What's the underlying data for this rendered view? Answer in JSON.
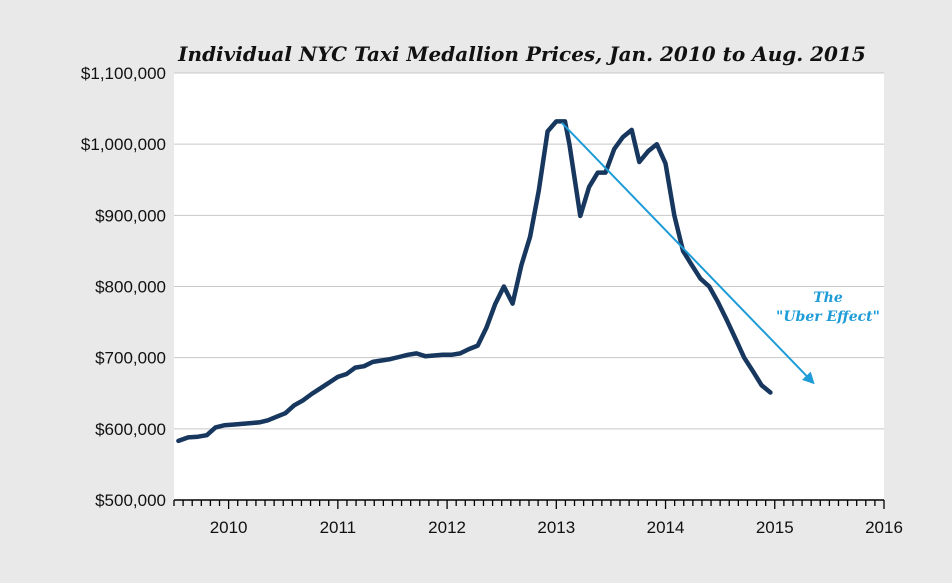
{
  "chart_data": {
    "type": "line",
    "title": "Individual NYC Taxi Medallion Prices, Jan. 2010 to Aug. 2015",
    "xlabel": "",
    "ylabel": "",
    "xlim": [
      2009.5,
      2016.0
    ],
    "ylim": [
      500000,
      1100000
    ],
    "yticks": [
      500000,
      600000,
      700000,
      800000,
      900000,
      1000000,
      1100000
    ],
    "ytick_labels": [
      "$500,000",
      "$600,000",
      "$700,000",
      "$800,000",
      "$900,000",
      "$1,000,000",
      "$1,100,000"
    ],
    "xticks": [
      2010,
      2011,
      2012,
      2013,
      2014,
      2015,
      2016
    ],
    "xtick_labels": [
      "2010",
      "2011",
      "2012",
      "2013",
      "2014",
      "2015",
      "2016"
    ],
    "grid": "horizontal",
    "series": [
      {
        "color": "#17375e",
        "points": [
          [
            2009.54,
            583000
          ],
          [
            2009.63,
            588000
          ],
          [
            2009.72,
            589000
          ],
          [
            2009.8,
            591000
          ],
          [
            2009.88,
            602000
          ],
          [
            2009.96,
            605000
          ],
          [
            2010.04,
            606000
          ],
          [
            2010.12,
            607000
          ],
          [
            2010.2,
            608000
          ],
          [
            2010.28,
            609000
          ],
          [
            2010.36,
            612000
          ],
          [
            2010.44,
            617000
          ],
          [
            2010.52,
            622000
          ],
          [
            2010.6,
            633000
          ],
          [
            2010.68,
            640000
          ],
          [
            2010.76,
            649000
          ],
          [
            2010.84,
            657000
          ],
          [
            2010.92,
            665000
          ],
          [
            2011.0,
            673000
          ],
          [
            2011.08,
            677000
          ],
          [
            2011.16,
            686000
          ],
          [
            2011.24,
            688000
          ],
          [
            2011.32,
            694000
          ],
          [
            2011.4,
            696000
          ],
          [
            2011.48,
            698000
          ],
          [
            2011.56,
            701000
          ],
          [
            2011.64,
            704000
          ],
          [
            2011.72,
            706000
          ],
          [
            2011.8,
            702000
          ],
          [
            2011.88,
            703000
          ],
          [
            2011.96,
            704000
          ],
          [
            2012.04,
            704000
          ],
          [
            2012.12,
            706000
          ],
          [
            2012.2,
            712000
          ],
          [
            2012.28,
            717000
          ],
          [
            2012.36,
            742000
          ],
          [
            2012.44,
            775000
          ],
          [
            2012.52,
            800000
          ],
          [
            2012.6,
            776000
          ],
          [
            2012.68,
            830000
          ],
          [
            2012.76,
            870000
          ],
          [
            2012.84,
            935000
          ],
          [
            2012.92,
            1018000
          ],
          [
            2013.0,
            1032000
          ],
          [
            2013.08,
            1032000
          ],
          [
            2013.12,
            1000000
          ],
          [
            2013.22,
            899000
          ],
          [
            2013.3,
            940000
          ],
          [
            2013.38,
            960000
          ],
          [
            2013.45,
            960000
          ],
          [
            2013.53,
            993000
          ],
          [
            2013.61,
            1010000
          ],
          [
            2013.69,
            1020000
          ],
          [
            2013.76,
            975000
          ],
          [
            2013.84,
            990000
          ],
          [
            2013.92,
            1000000
          ],
          [
            2014.0,
            973000
          ],
          [
            2014.08,
            900000
          ],
          [
            2014.16,
            850000
          ],
          [
            2014.24,
            830000
          ],
          [
            2014.32,
            811000
          ],
          [
            2014.4,
            800000
          ],
          [
            2014.48,
            778000
          ],
          [
            2014.56,
            753000
          ],
          [
            2014.64,
            727000
          ],
          [
            2014.72,
            700000
          ],
          [
            2014.8,
            681000
          ],
          [
            2014.88,
            661000
          ],
          [
            2014.96,
            651000
          ]
        ]
      }
    ],
    "annotation": {
      "lines": [
        "The",
        "\"Uber Effect\""
      ],
      "color": "#1e9cd7",
      "arrow_from": [
        2013.05,
        1030000
      ],
      "arrow_to": [
        2015.35,
        665000
      ]
    },
    "colors": {
      "background": "#e9e9e9",
      "plot_area": "#ffffff",
      "grid": "#c8c8c8",
      "axis": "#000000"
    }
  }
}
